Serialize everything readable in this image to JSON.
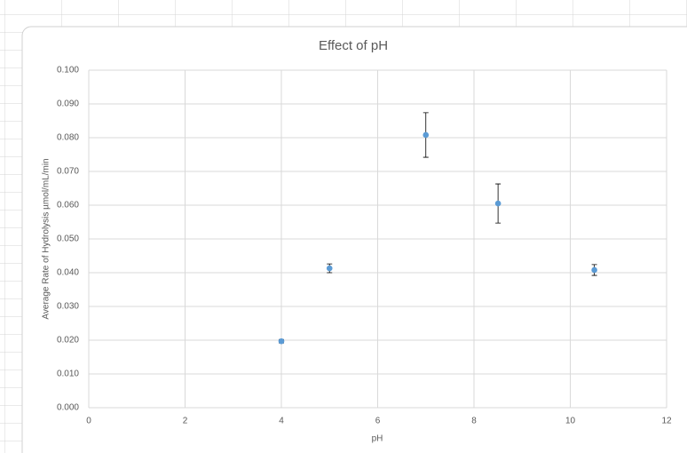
{
  "chart_data": {
    "type": "scatter",
    "title": "Effect of pH",
    "x_label": "pH",
    "y_label": "Average Rate of Hydrolysis µmol/mL/min",
    "series": [
      {
        "color": "#5b9bd5",
        "x": [
          4,
          5,
          7,
          8.5,
          10.5
        ],
        "values": [
          0.0197,
          0.0413,
          0.0808,
          0.0605,
          0.0408
        ],
        "errors": [
          0.0005,
          0.0013,
          0.0066,
          0.0058,
          0.0016
        ]
      }
    ],
    "xlim": [
      0,
      12
    ],
    "xticks": [
      0,
      2,
      4,
      6,
      8,
      10,
      12
    ],
    "ylim": [
      0,
      0.1
    ],
    "yticks": [
      {
        "value": 0,
        "label": "0.000"
      },
      {
        "value": 0.01,
        "label": "0.010"
      },
      {
        "value": 0.02,
        "label": "0.020"
      },
      {
        "value": 0.03,
        "label": "0.030"
      },
      {
        "value": 0.04,
        "label": "0.040"
      },
      {
        "value": 0.05,
        "label": "0.050"
      },
      {
        "value": 0.06,
        "label": "0.060"
      },
      {
        "value": 0.07,
        "label": "0.070"
      },
      {
        "value": 0.08,
        "label": "0.080"
      },
      {
        "value": 0.09,
        "label": "0.090"
      },
      {
        "value": 0.1,
        "label": "0.100"
      }
    ],
    "grid": true
  }
}
